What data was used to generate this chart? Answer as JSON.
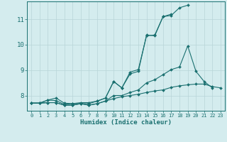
{
  "xlabel": "Humidex (Indice chaleur)",
  "bg_color": "#d4ecee",
  "grid_color": "#b8d4d8",
  "line_color": "#1a7070",
  "xlim": [
    -0.5,
    23.5
  ],
  "ylim": [
    7.4,
    11.7
  ],
  "yticks": [
    8,
    9,
    10,
    11
  ],
  "xticks": [
    0,
    1,
    2,
    3,
    4,
    5,
    6,
    7,
    8,
    9,
    10,
    11,
    12,
    13,
    14,
    15,
    16,
    17,
    18,
    19,
    20,
    21,
    22,
    23
  ],
  "series": [
    [
      7.7,
      7.7,
      7.82,
      7.9,
      7.7,
      7.68,
      7.68,
      7.68,
      7.78,
      7.9,
      8.55,
      8.3,
      8.85,
      8.95,
      10.38,
      10.35,
      11.1,
      11.15,
      11.45,
      11.55,
      null,
      null,
      null,
      null
    ],
    [
      7.7,
      7.7,
      7.82,
      7.8,
      7.65,
      7.68,
      7.72,
      7.72,
      7.78,
      7.9,
      8.55,
      8.3,
      8.92,
      9.02,
      10.35,
      10.38,
      11.1,
      11.2,
      null,
      null,
      null,
      null,
      null,
      null
    ],
    [
      7.7,
      7.7,
      7.72,
      7.72,
      7.62,
      7.62,
      7.68,
      7.62,
      7.68,
      7.78,
      8.0,
      8.0,
      8.12,
      8.22,
      8.5,
      8.62,
      8.82,
      9.02,
      9.12,
      9.95,
      8.95,
      8.55,
      8.3,
      null
    ],
    [
      7.7,
      7.7,
      7.72,
      7.72,
      7.62,
      7.62,
      7.68,
      7.62,
      7.68,
      7.78,
      7.88,
      7.95,
      8.0,
      8.05,
      8.12,
      8.18,
      8.22,
      8.32,
      8.38,
      8.42,
      8.45,
      8.45,
      8.35,
      8.3
    ]
  ]
}
